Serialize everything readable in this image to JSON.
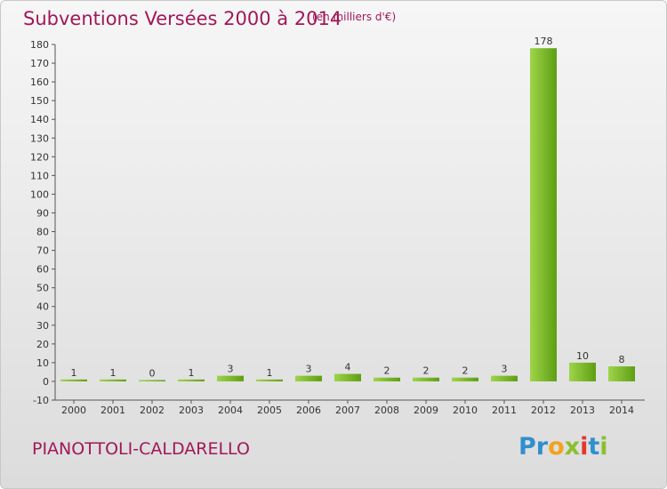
{
  "title": "Subventions Versées 2000 à 2014",
  "subtitle": "(en milliers d'€)",
  "commune": "PIANOTTOLI-CALDARELLO",
  "brand": {
    "letters": [
      {
        "ch": "P",
        "color": "#2f8fcf"
      },
      {
        "ch": "r",
        "color": "#2f8fcf"
      },
      {
        "ch": "o",
        "color": "#f2a31b"
      },
      {
        "ch": "x",
        "color": "#8bbf2e"
      },
      {
        "ch": "i",
        "color": "#e2382e"
      },
      {
        "ch": "t",
        "color": "#2f8fcf"
      },
      {
        "ch": "i",
        "color": "#8bbf2e"
      }
    ]
  },
  "colors": {
    "bar_light": "#9fd44a",
    "bar_dark": "#5e9e12",
    "title": "#a0185a"
  },
  "chart_data": {
    "type": "bar",
    "categories": [
      "2000",
      "2001",
      "2002",
      "2003",
      "2004",
      "2005",
      "2006",
      "2007",
      "2008",
      "2009",
      "2010",
      "2011",
      "2012",
      "2013",
      "2014"
    ],
    "values": [
      1,
      1,
      0,
      1,
      3,
      1,
      3,
      4,
      2,
      2,
      2,
      3,
      178,
      10,
      8
    ],
    "ylim": [
      -10,
      180
    ],
    "yticks": [
      -10,
      0,
      10,
      20,
      30,
      40,
      50,
      60,
      70,
      80,
      90,
      100,
      110,
      120,
      130,
      140,
      150,
      160,
      170,
      180
    ],
    "grid": false
  }
}
